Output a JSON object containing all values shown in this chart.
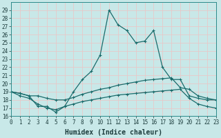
{
  "xlabel": "Humidex (Indice chaleur)",
  "background_color": "#c8e8e8",
  "grid_color": "#e8c8c8",
  "line_color": "#1a6b6b",
  "x": [
    0,
    1,
    2,
    3,
    4,
    5,
    6,
    7,
    8,
    9,
    10,
    11,
    12,
    13,
    14,
    15,
    16,
    17,
    18,
    19,
    20,
    21,
    22,
    23
  ],
  "line1": [
    19,
    18.8,
    18.5,
    17.2,
    17.2,
    16.5,
    17.2,
    19.0,
    20.5,
    21.5,
    23.5,
    29.0,
    27.2,
    26.5,
    25.0,
    25.2,
    26.5,
    22.0,
    20.5,
    20.5,
    18.5,
    18.2,
    18.0,
    18.0
  ],
  "line2": [
    19,
    18.8,
    18.5,
    18.5,
    18.2,
    18.0,
    18.0,
    18.3,
    18.7,
    19.0,
    19.3,
    19.5,
    19.8,
    20.0,
    20.2,
    20.4,
    20.5,
    20.6,
    20.7,
    19.5,
    19.3,
    18.5,
    18.2,
    18.0
  ],
  "line3": [
    19,
    18.5,
    18.2,
    17.5,
    17.0,
    16.8,
    17.2,
    17.5,
    17.8,
    18.0,
    18.2,
    18.4,
    18.6,
    18.7,
    18.8,
    18.9,
    19.0,
    19.1,
    19.2,
    19.3,
    18.2,
    17.5,
    17.2,
    17.0
  ],
  "ylim": [
    16,
    30
  ],
  "yticks": [
    16,
    17,
    18,
    19,
    20,
    21,
    22,
    23,
    24,
    25,
    26,
    27,
    28,
    29
  ],
  "xlim": [
    0,
    23
  ],
  "xticks": [
    0,
    1,
    2,
    3,
    4,
    5,
    6,
    7,
    8,
    9,
    10,
    11,
    12,
    13,
    14,
    15,
    16,
    17,
    18,
    19,
    20,
    21,
    22,
    23
  ],
  "tick_fontsize": 5.5,
  "label_fontsize": 7
}
